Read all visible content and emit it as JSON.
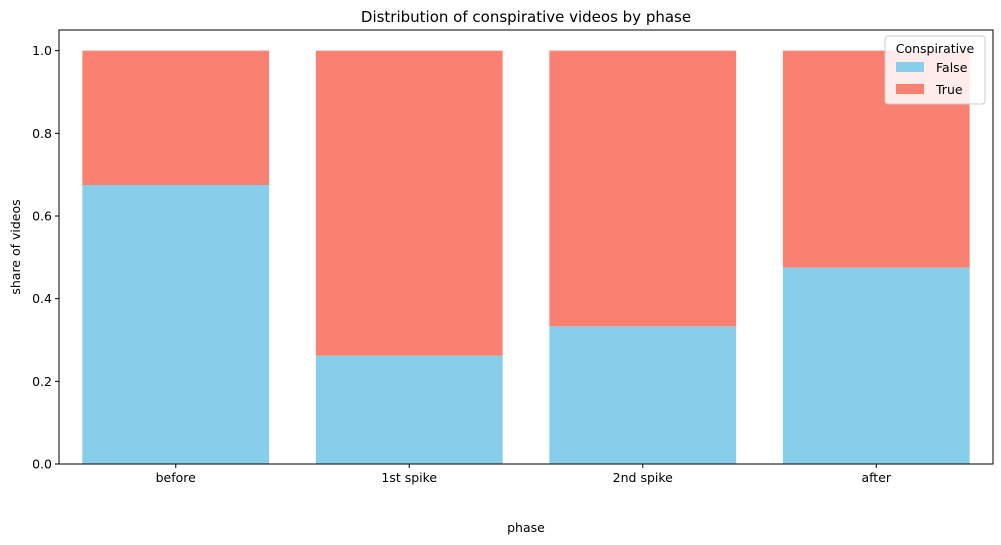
{
  "chart_data": {
    "type": "bar",
    "stacked": true,
    "title": "Distribution of conspirative videos by phase",
    "xlabel": "phase",
    "ylabel": "share of videos",
    "categories": [
      "before",
      "1st spike",
      "2nd spike",
      "after"
    ],
    "series": [
      {
        "name": "False",
        "values": [
          0.675,
          0.262,
          0.333,
          0.475
        ],
        "color": "#87ceeb"
      },
      {
        "name": "True",
        "values": [
          0.325,
          0.738,
          0.667,
          0.525
        ],
        "color": "#fa8072"
      }
    ],
    "ylim": [
      0,
      1.05
    ],
    "yticks": [
      "0.0",
      "0.2",
      "0.4",
      "0.6",
      "0.8",
      "1.0"
    ],
    "grid": false,
    "legend": {
      "title": "Conspirative",
      "placement": "top-right"
    }
  }
}
